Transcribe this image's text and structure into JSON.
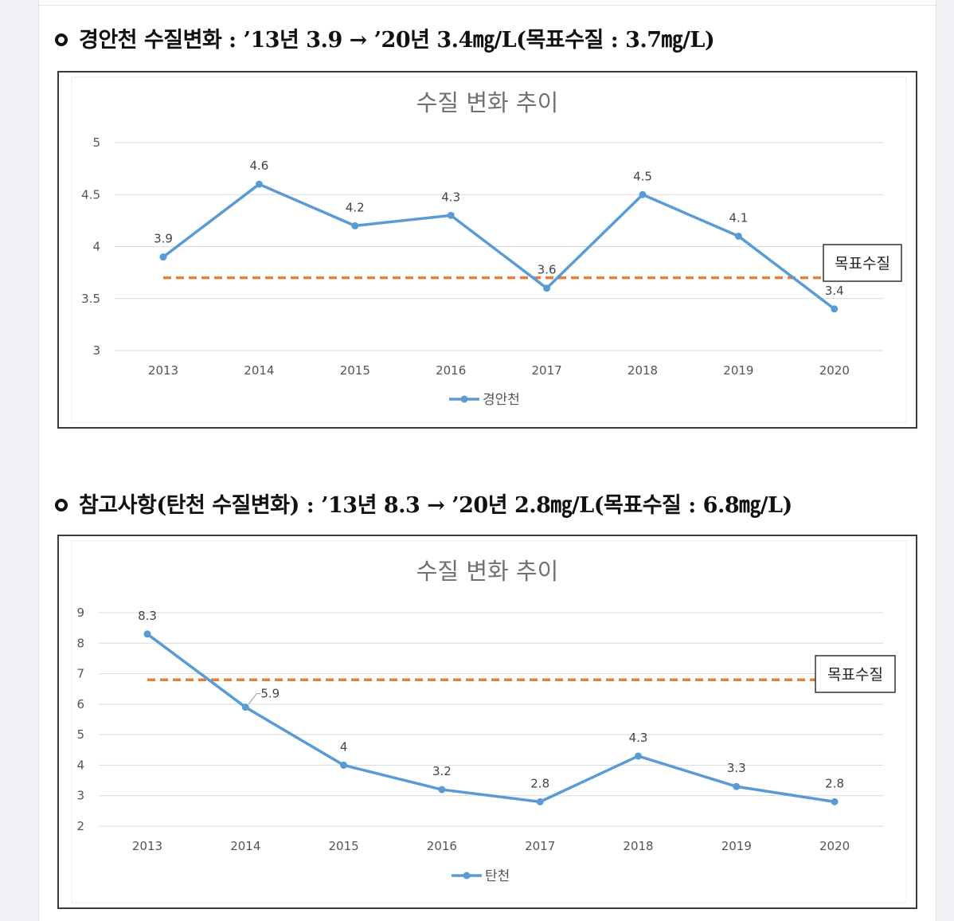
{
  "headings": [
    "경안천 수질변화 : ’13년 3.9 → ’20년 3.4㎎/L(목표수질 : 3.7㎎/L)",
    "참고사항(탄천 수질변화) : ’13년 8.3 → ’20년 2.8㎎/L(목표수질 : 6.8㎎/L)"
  ],
  "chart_data": [
    {
      "type": "line",
      "title": "수질 변화 추이",
      "categories": [
        "2013",
        "2014",
        "2015",
        "2016",
        "2017",
        "2018",
        "2019",
        "2020"
      ],
      "series": [
        {
          "name": "경안천",
          "values": [
            3.9,
            4.6,
            4.2,
            4.3,
            3.6,
            4.5,
            4.1,
            3.4
          ],
          "labels": [
            "3.9",
            "4.6",
            "4.2",
            "4.3",
            "3.6",
            "4.5",
            "4.1",
            "3.4"
          ],
          "color": "#5b9bd5"
        }
      ],
      "target": {
        "label": "목표수질",
        "value": 3.7,
        "color": "#ed7d31"
      },
      "ylim": [
        3,
        5
      ],
      "yticks": [
        "3",
        "3.5",
        "4",
        "4.5",
        "5"
      ],
      "grid": true,
      "legend_position": "bottom"
    },
    {
      "type": "line",
      "title": "수질 변화 추이",
      "categories": [
        "2013",
        "2014",
        "2015",
        "2016",
        "2017",
        "2018",
        "2019",
        "2020"
      ],
      "series": [
        {
          "name": "탄천",
          "values": [
            8.3,
            5.9,
            4,
            3.2,
            2.8,
            4.3,
            3.3,
            2.8
          ],
          "labels": [
            "8.3",
            "5.9",
            "4",
            "3.2",
            "2.8",
            "4.3",
            "3.3",
            "2.8"
          ],
          "color": "#5b9bd5"
        }
      ],
      "target": {
        "label": "목표수질",
        "value": 6.8,
        "color": "#ed7d31"
      },
      "ylim": [
        2,
        9
      ],
      "yticks": [
        "2",
        "3",
        "4",
        "5",
        "6",
        "7",
        "8",
        "9"
      ],
      "grid": true,
      "legend_position": "bottom"
    }
  ]
}
